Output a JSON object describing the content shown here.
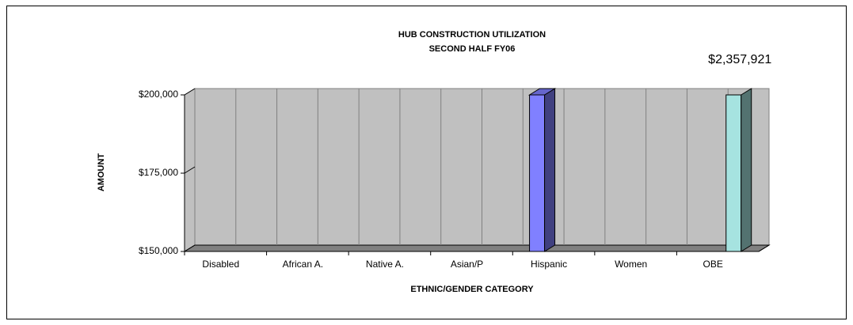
{
  "chart_data": {
    "type": "bar3d",
    "title": "HUB CONSTRUCTION UTILIZATION",
    "subtitle": "SECOND HALF FY06",
    "x_label": "ETHNIC/GENDER CATEGORY",
    "y_label": "AMOUNT",
    "categories": [
      "Disabled",
      "African A.",
      "Native A.",
      "Asian/P",
      "Hispanic",
      "Women",
      "OBE"
    ],
    "values": [
      0,
      0,
      0,
      0,
      200000,
      0,
      2357921
    ],
    "value_labels": [
      null,
      null,
      null,
      null,
      null,
      null,
      "$2,357,921"
    ],
    "colors": [
      "#8080ff",
      "#8080ff",
      "#8080ff",
      "#8080ff",
      "#8080ff",
      "#8080ff",
      "#a6e3e0"
    ],
    "ylim": [
      150000,
      200000
    ],
    "yticks": [
      {
        "value": 150000,
        "label": "$150,000"
      },
      {
        "value": 175000,
        "label": "$175,000"
      },
      {
        "value": 200000,
        "label": "$200,000"
      }
    ]
  }
}
